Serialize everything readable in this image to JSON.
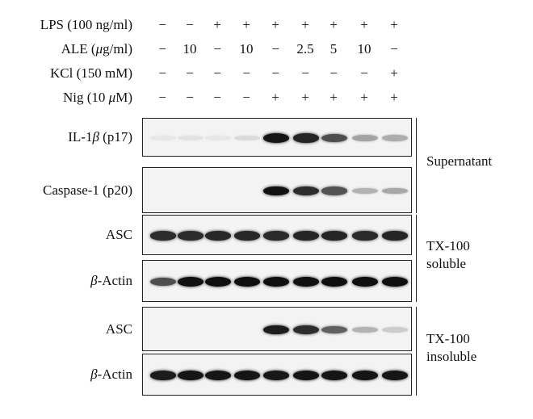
{
  "conditions": [
    {
      "label_pre": "LPS (100 ng/ml)",
      "label_it": "",
      "label_post": "",
      "values": [
        "−",
        "−",
        "+",
        "+",
        "+",
        "+",
        "+",
        "+",
        "+"
      ]
    },
    {
      "label_pre": "ALE (",
      "label_it": "μ",
      "label_post": "g/ml)",
      "values": [
        "−",
        "10",
        "−",
        "10",
        "−",
        "2.5",
        "5",
        "10",
        "−"
      ]
    },
    {
      "label_pre": "KCl (150 mM)",
      "label_it": "",
      "label_post": "",
      "values": [
        "−",
        "−",
        "−",
        "−",
        "−",
        "−",
        "−",
        "−",
        "+"
      ]
    },
    {
      "label_pre": "Nig (10 ",
      "label_it": "μ",
      "label_post": "M)",
      "values": [
        "−",
        "−",
        "−",
        "−",
        "+",
        "+",
        "+",
        "+",
        "+"
      ]
    }
  ],
  "blots": [
    {
      "label_pre": "IL-1",
      "label_it": "β",
      "label_post": " (p17)",
      "bands": [
        0.02,
        0.04,
        0.02,
        0.07,
        0.95,
        0.88,
        0.7,
        0.32,
        0.28
      ]
    },
    {
      "label_pre": "Caspase-1 (p20)",
      "label_it": "",
      "label_post": "",
      "bands": [
        0,
        0,
        0,
        0,
        0.97,
        0.85,
        0.68,
        0.25,
        0.3
      ]
    },
    {
      "label_pre": "ASC",
      "label_it": "",
      "label_post": "",
      "bands": [
        0.85,
        0.85,
        0.87,
        0.87,
        0.86,
        0.88,
        0.88,
        0.86,
        0.88
      ]
    },
    {
      "label_pre": "",
      "label_it": "β",
      "label_post": "-Actin",
      "bands": [
        0.7,
        0.97,
        0.98,
        0.98,
        0.98,
        0.97,
        0.98,
        0.98,
        0.98
      ]
    },
    {
      "label_pre": "ASC",
      "label_it": "",
      "label_post": "",
      "bands": [
        0,
        0,
        0,
        0,
        0.92,
        0.85,
        0.62,
        0.25,
        0.14
      ]
    },
    {
      "label_pre": "",
      "label_it": "β",
      "label_post": "-Actin",
      "bands": [
        0.92,
        0.95,
        0.95,
        0.95,
        0.94,
        0.95,
        0.95,
        0.95,
        0.95
      ]
    }
  ],
  "groups": [
    {
      "lines": [
        "Supernatant"
      ]
    },
    {
      "lines": [
        "TX-100",
        "soluble"
      ]
    },
    {
      "lines": [
        "TX-100",
        "insoluble"
      ]
    }
  ]
}
